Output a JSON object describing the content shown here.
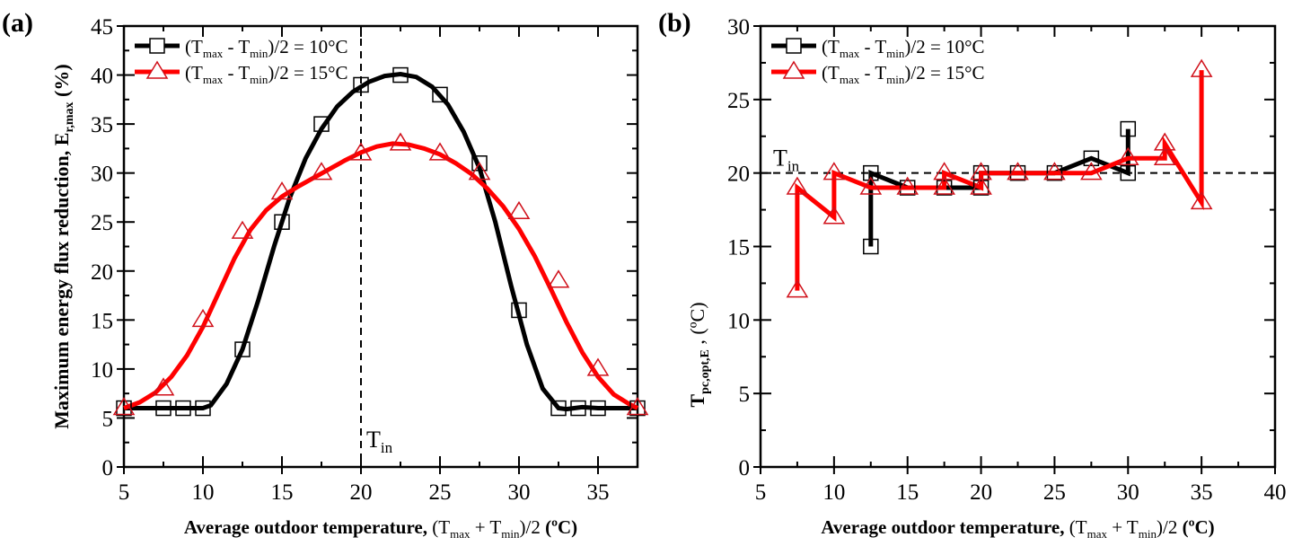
{
  "chart_data": [
    {
      "panel_label": "(a)",
      "type": "line",
      "title": "",
      "xlabel_bold": "Average outdoor temperature,",
      "xlabel_rest": "(T_max + T_min)/2 (ºC)",
      "ylabel": "Maximum energy flux reduction, E_r,max (%)",
      "xlim": [
        5,
        37.5
      ],
      "ylim": [
        0,
        45
      ],
      "xticks": [
        5,
        10,
        15,
        20,
        25,
        30,
        35
      ],
      "yticks": [
        0,
        5,
        10,
        15,
        20,
        25,
        30,
        35,
        40,
        45
      ],
      "grid": false,
      "legend_position": "top-left",
      "annotation": {
        "text": "T_in",
        "x": 20,
        "type": "vertical-dashed-line"
      },
      "series": [
        {
          "name": "(T_max - T_min)/2 = 10°C",
          "color": "#000000",
          "marker": "square",
          "points": [
            [
              5,
              6
            ],
            [
              7.5,
              6
            ],
            [
              8.75,
              6
            ],
            [
              10,
              6
            ],
            [
              12.5,
              12
            ],
            [
              15,
              25
            ],
            [
              17.5,
              35
            ],
            [
              20,
              39
            ],
            [
              22.5,
              40
            ],
            [
              25,
              38
            ],
            [
              27.5,
              31
            ],
            [
              30,
              16
            ],
            [
              32.5,
              6
            ],
            [
              33.75,
              6
            ],
            [
              35,
              6
            ],
            [
              37.5,
              6
            ]
          ],
          "curve": [
            [
              5,
              6
            ],
            [
              7,
              6
            ],
            [
              9,
              6
            ],
            [
              10,
              6
            ],
            [
              10.5,
              6.3
            ],
            [
              11.5,
              8.5
            ],
            [
              12.5,
              12
            ],
            [
              13.5,
              17
            ],
            [
              14.5,
              22.5
            ],
            [
              15.5,
              27.5
            ],
            [
              16.5,
              31.5
            ],
            [
              17.5,
              34.5
            ],
            [
              18.5,
              36.8
            ],
            [
              19.5,
              38.3
            ],
            [
              20.5,
              39.3
            ],
            [
              21.5,
              39.9
            ],
            [
              22.5,
              40.1
            ],
            [
              23.5,
              39.8
            ],
            [
              24.5,
              38.8
            ],
            [
              25.5,
              37
            ],
            [
              26.5,
              34.2
            ],
            [
              27.5,
              30.5
            ],
            [
              28.5,
              25
            ],
            [
              29.5,
              18.5
            ],
            [
              30.5,
              12.5
            ],
            [
              31.5,
              8
            ],
            [
              32.5,
              6
            ],
            [
              33,
              5.9
            ],
            [
              34,
              6.1
            ],
            [
              35,
              6
            ],
            [
              37.5,
              6
            ]
          ]
        },
        {
          "name": "(T_max - T_min)/2 = 15°C",
          "color": "#ff0000",
          "marker": "triangle",
          "points": [
            [
              5,
              6
            ],
            [
              7.5,
              8
            ],
            [
              10,
              15
            ],
            [
              12.5,
              24
            ],
            [
              15,
              28
            ],
            [
              17.5,
              30
            ],
            [
              20,
              32
            ],
            [
              22.5,
              33
            ],
            [
              25,
              32
            ],
            [
              27.5,
              30
            ],
            [
              30,
              26
            ],
            [
              32.5,
              19
            ],
            [
              35,
              10
            ],
            [
              37.5,
              6
            ]
          ],
          "curve": [
            [
              5,
              6
            ],
            [
              6,
              6.6
            ],
            [
              7,
              7.6
            ],
            [
              8,
              9.2
            ],
            [
              9,
              11.4
            ],
            [
              10,
              14.3
            ],
            [
              11,
              17.8
            ],
            [
              12,
              21.3
            ],
            [
              13,
              24.2
            ],
            [
              14,
              26.2
            ],
            [
              15,
              27.6
            ],
            [
              16,
              28.6
            ],
            [
              17,
              29.5
            ],
            [
              18,
              30.4
            ],
            [
              19,
              31.3
            ],
            [
              20,
              32.1
            ],
            [
              21,
              32.7
            ],
            [
              22,
              33
            ],
            [
              23,
              32.9
            ],
            [
              24,
              32.5
            ],
            [
              25,
              31.9
            ],
            [
              26,
              31
            ],
            [
              27,
              29.9
            ],
            [
              28,
              28.4
            ],
            [
              29,
              26.6
            ],
            [
              30,
              24.3
            ],
            [
              31,
              21.5
            ],
            [
              32,
              18.2
            ],
            [
              33,
              14.8
            ],
            [
              34,
              11.7
            ],
            [
              35,
              9.2
            ],
            [
              36,
              7.4
            ],
            [
              37,
              6.4
            ],
            [
              37.5,
              6
            ]
          ]
        }
      ]
    },
    {
      "panel_label": "(b)",
      "type": "line",
      "title": "",
      "xlabel_bold": "Average outdoor temperature,",
      "xlabel_rest": "(T_max + T_min)/2 (ºC)",
      "ylabel": "T_pc,opt,E , (ºC)",
      "xlim": [
        5,
        40
      ],
      "ylim": [
        0,
        30
      ],
      "xticks": [
        5,
        10,
        15,
        20,
        25,
        30,
        35,
        40
      ],
      "yticks": [
        0,
        5,
        10,
        15,
        20,
        25,
        30
      ],
      "grid": false,
      "legend_position": "top-left",
      "annotation": {
        "text": "T_in",
        "y": 20,
        "type": "horizontal-dashed-line"
      },
      "series": [
        {
          "name": "(T_max - T_min)/2 = 10°C",
          "color": "#000000",
          "marker": "square",
          "points": [
            [
              12.5,
              15
            ],
            [
              12.5,
              20
            ],
            [
              15,
              19
            ],
            [
              17.5,
              19
            ],
            [
              20,
              19
            ],
            [
              20,
              20
            ],
            [
              22.5,
              20
            ],
            [
              25,
              20
            ],
            [
              27.5,
              21
            ],
            [
              30,
              20
            ],
            [
              30,
              23
            ]
          ]
        },
        {
          "name": "(T_max - T_min)/2 = 15°C",
          "color": "#ff0000",
          "marker": "triangle",
          "points": [
            [
              7.5,
              12
            ],
            [
              7.5,
              19
            ],
            [
              10,
              17
            ],
            [
              10,
              20
            ],
            [
              12.5,
              19
            ],
            [
              15,
              19
            ],
            [
              17.5,
              19
            ],
            [
              17.5,
              20
            ],
            [
              20,
              19
            ],
            [
              20,
              20
            ],
            [
              22.5,
              20
            ],
            [
              25,
              20
            ],
            [
              27.5,
              20
            ],
            [
              30,
              21
            ],
            [
              32.5,
              21
            ],
            [
              32.5,
              22
            ],
            [
              35,
              18
            ],
            [
              35,
              27
            ]
          ]
        }
      ]
    }
  ]
}
